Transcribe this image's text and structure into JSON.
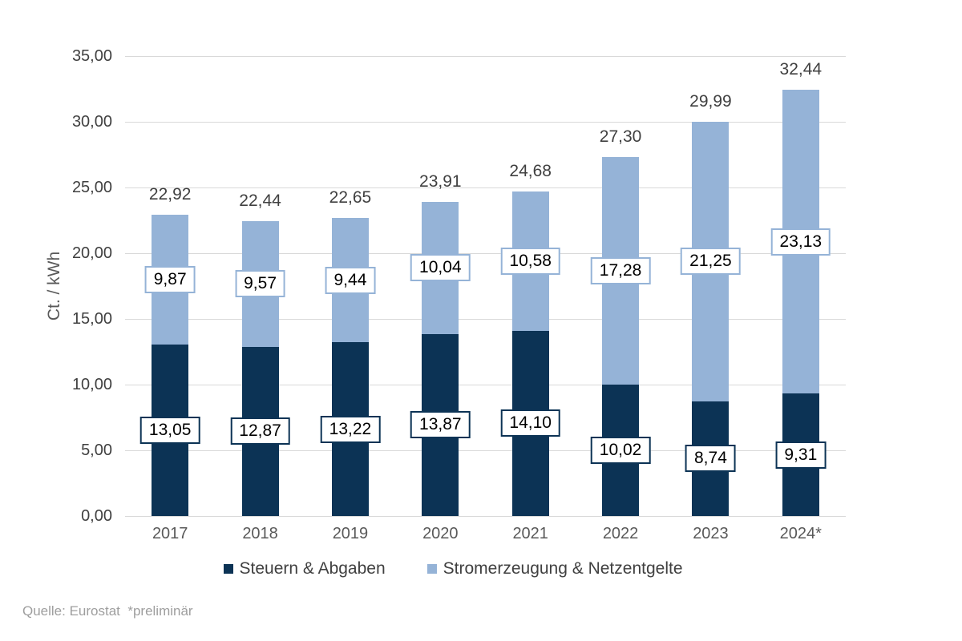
{
  "chart_data": {
    "type": "bar",
    "stacked": true,
    "title": "",
    "xlabel": "",
    "ylabel": "Ct. / kWh",
    "ylim": [
      0,
      35
    ],
    "ytick_step": 5,
    "grid": true,
    "legend_position": "bottom",
    "decimal_separator": ",",
    "yticks": [
      {
        "value": 0,
        "label": "0,00"
      },
      {
        "value": 5,
        "label": "5,00"
      },
      {
        "value": 10,
        "label": "10,00"
      },
      {
        "value": 15,
        "label": "15,00"
      },
      {
        "value": 20,
        "label": "20,00"
      },
      {
        "value": 25,
        "label": "25,00"
      },
      {
        "value": 30,
        "label": "30,00"
      },
      {
        "value": 35,
        "label": "35,00"
      }
    ],
    "categories": [
      "2017",
      "2018",
      "2019",
      "2020",
      "2021",
      "2022",
      "2023",
      "2024*"
    ],
    "series": [
      {
        "name": "Steuern & Abgaben",
        "color": "#0C3355",
        "values": [
          13.05,
          12.87,
          13.22,
          13.87,
          14.1,
          10.02,
          8.74,
          9.31
        ],
        "labels": [
          "13,05",
          "12,87",
          "13,22",
          "13,87",
          "14,10",
          "10,02",
          "8,74",
          "9,31"
        ]
      },
      {
        "name": "Stromerzeugung & Netzentgelte",
        "color": "#95B3D7",
        "values": [
          9.87,
          9.57,
          9.44,
          10.04,
          10.58,
          17.28,
          21.25,
          23.13
        ],
        "labels": [
          "9,87",
          "9,57",
          "9,44",
          "10,04",
          "10,58",
          "17,28",
          "21,25",
          "23,13"
        ]
      }
    ],
    "totals": [
      22.92,
      22.44,
      22.65,
      23.91,
      24.68,
      27.3,
      29.99,
      32.44
    ],
    "total_labels": [
      "22,92",
      "22,44",
      "22,65",
      "23,91",
      "24,68",
      "27,30",
      "29,99",
      "32,44"
    ]
  },
  "legend": {
    "items": [
      {
        "label": "Steuern & Abgaben",
        "color": "#0C3355"
      },
      {
        "label": "Stromerzeugung & Netzentgelte",
        "color": "#95B3D7"
      }
    ]
  },
  "footer": {
    "text": "Quelle: Eurostat  *preliminär"
  },
  "colors": {
    "gridline": "#D9D9D9",
    "tick_text": "#404040",
    "category_text": "#595959",
    "total_text": "#404040",
    "value_text": "#000000",
    "label_box_bg": "#FFFFFF",
    "footer_text": "#9E9E9E"
  }
}
